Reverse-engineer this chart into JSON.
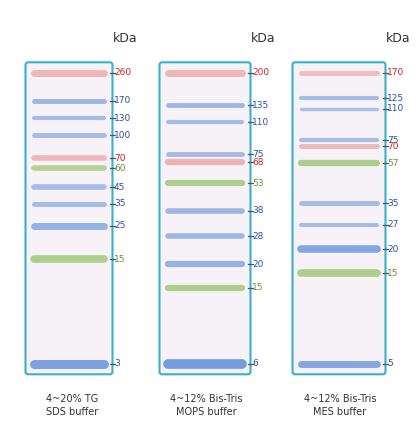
{
  "lanes": [
    {
      "title": "4~20% TG\nSDS buffer",
      "kda_max": 260,
      "kda_min": 3,
      "bands": [
        {
          "kda": 260,
          "color": "#e88888",
          "lw": 5.0,
          "alpha": 0.55
        },
        {
          "kda": 170,
          "color": "#6090d8",
          "lw": 3.5,
          "alpha": 0.6
        },
        {
          "kda": 130,
          "color": "#6090d8",
          "lw": 3.0,
          "alpha": 0.55
        },
        {
          "kda": 100,
          "color": "#6090d8",
          "lw": 3.5,
          "alpha": 0.55
        },
        {
          "kda": 70,
          "color": "#e88888",
          "lw": 4.0,
          "alpha": 0.55
        },
        {
          "kda": 60,
          "color": "#88bb55",
          "lw": 4.0,
          "alpha": 0.6
        },
        {
          "kda": 45,
          "color": "#6090d8",
          "lw": 4.0,
          "alpha": 0.55
        },
        {
          "kda": 35,
          "color": "#6090d8",
          "lw": 3.5,
          "alpha": 0.55
        },
        {
          "kda": 25,
          "color": "#6090d8",
          "lw": 5.0,
          "alpha": 0.65
        },
        {
          "kda": 15,
          "color": "#88bb55",
          "lw": 5.5,
          "alpha": 0.65
        },
        {
          "kda": 3,
          "color": "#5588d8",
          "lw": 6.5,
          "alpha": 0.75
        }
      ],
      "labels": [
        {
          "kda": 260,
          "text": "260",
          "color": "#cc2222"
        },
        {
          "kda": 170,
          "text": "170",
          "color": "#2255aa"
        },
        {
          "kda": 130,
          "text": "130",
          "color": "#2255aa"
        },
        {
          "kda": 100,
          "text": "100",
          "color": "#2255aa"
        },
        {
          "kda": 70,
          "text": "70",
          "color": "#cc2222"
        },
        {
          "kda": 60,
          "text": "60",
          "color": "#5a9a2a"
        },
        {
          "kda": 45,
          "text": "45",
          "color": "#2255aa"
        },
        {
          "kda": 35,
          "text": "35",
          "color": "#2255aa"
        },
        {
          "kda": 25,
          "text": "25",
          "color": "#2255aa"
        },
        {
          "kda": 15,
          "text": "15",
          "color": "#5a9a2a"
        },
        {
          "kda": 3,
          "text": "3",
          "color": "#2255aa"
        }
      ]
    },
    {
      "title": "4~12% Bis-Tris\nMOPS buffer",
      "kda_max": 200,
      "kda_min": 6,
      "bands": [
        {
          "kda": 200,
          "color": "#e88888",
          "lw": 5.0,
          "alpha": 0.55
        },
        {
          "kda": 135,
          "color": "#6090d8",
          "lw": 3.5,
          "alpha": 0.6
        },
        {
          "kda": 110,
          "color": "#6090d8",
          "lw": 3.0,
          "alpha": 0.55
        },
        {
          "kda": 75,
          "color": "#6090d8",
          "lw": 3.5,
          "alpha": 0.55
        },
        {
          "kda": 68,
          "color": "#e88888",
          "lw": 4.5,
          "alpha": 0.6
        },
        {
          "kda": 53,
          "color": "#88bb55",
          "lw": 4.5,
          "alpha": 0.65
        },
        {
          "kda": 38,
          "color": "#6090d8",
          "lw": 4.0,
          "alpha": 0.6
        },
        {
          "kda": 28,
          "color": "#6090d8",
          "lw": 4.0,
          "alpha": 0.6
        },
        {
          "kda": 20,
          "color": "#6090d8",
          "lw": 4.5,
          "alpha": 0.65
        },
        {
          "kda": 15,
          "color": "#88bb55",
          "lw": 4.5,
          "alpha": 0.65
        },
        {
          "kda": 6,
          "color": "#5588d8",
          "lw": 7.0,
          "alpha": 0.8
        }
      ],
      "labels": [
        {
          "kda": 200,
          "text": "200",
          "color": "#cc2222"
        },
        {
          "kda": 135,
          "text": "135",
          "color": "#2255aa"
        },
        {
          "kda": 110,
          "text": "110",
          "color": "#2255aa"
        },
        {
          "kda": 75,
          "text": "75",
          "color": "#2255aa"
        },
        {
          "kda": 68,
          "text": "68",
          "color": "#cc2222"
        },
        {
          "kda": 53,
          "text": "53",
          "color": "#5a9a2a"
        },
        {
          "kda": 38,
          "text": "38",
          "color": "#2255aa"
        },
        {
          "kda": 28,
          "text": "28",
          "color": "#2255aa"
        },
        {
          "kda": 20,
          "text": "20",
          "color": "#2255aa"
        },
        {
          "kda": 15,
          "text": "15",
          "color": "#5a9a2a"
        },
        {
          "kda": 6,
          "text": "6",
          "color": "#2255aa"
        }
      ]
    },
    {
      "title": "4~12% Bis-Tris\nMES buffer",
      "kda_max": 170,
      "kda_min": 5,
      "bands": [
        {
          "kda": 170,
          "color": "#e88888",
          "lw": 3.5,
          "alpha": 0.5
        },
        {
          "kda": 125,
          "color": "#6090d8",
          "lw": 3.0,
          "alpha": 0.55
        },
        {
          "kda": 110,
          "color": "#6090d8",
          "lw": 2.5,
          "alpha": 0.5
        },
        {
          "kda": 75,
          "color": "#6090d8",
          "lw": 3.0,
          "alpha": 0.55
        },
        {
          "kda": 70,
          "color": "#e88888",
          "lw": 3.5,
          "alpha": 0.55
        },
        {
          "kda": 57,
          "color": "#88bb55",
          "lw": 4.5,
          "alpha": 0.65
        },
        {
          "kda": 35,
          "color": "#6090d8",
          "lw": 3.5,
          "alpha": 0.55
        },
        {
          "kda": 27,
          "color": "#6090d8",
          "lw": 3.0,
          "alpha": 0.55
        },
        {
          "kda": 20,
          "color": "#5588d8",
          "lw": 5.5,
          "alpha": 0.7
        },
        {
          "kda": 15,
          "color": "#88bb55",
          "lw": 5.5,
          "alpha": 0.65
        },
        {
          "kda": 5,
          "color": "#5588d8",
          "lw": 5.0,
          "alpha": 0.7
        }
      ],
      "labels": [
        {
          "kda": 170,
          "text": "170",
          "color": "#cc2222"
        },
        {
          "kda": 125,
          "text": "125",
          "color": "#2255aa"
        },
        {
          "kda": 110,
          "text": "110",
          "color": "#2255aa"
        },
        {
          "kda": 75,
          "text": "75",
          "color": "#2255aa"
        },
        {
          "kda": 70,
          "text": "70",
          "color": "#cc2222"
        },
        {
          "kda": 57,
          "text": "57",
          "color": "#5a9a2a"
        },
        {
          "kda": 35,
          "text": "35",
          "color": "#2255aa"
        },
        {
          "kda": 27,
          "text": "27",
          "color": "#2255aa"
        },
        {
          "kda": 20,
          "text": "20",
          "color": "#2255aa"
        },
        {
          "kda": 15,
          "text": "15",
          "color": "#5a9a2a"
        },
        {
          "kda": 5,
          "text": "5",
          "color": "#2255aa"
        }
      ]
    }
  ],
  "bg_color": "#ffffff",
  "gel_bg": "#f7f2f7",
  "gel_border_color": "#3ab0cc",
  "gel_border_lw": 1.5,
  "kda_label_fontsize": 6.5,
  "title_fontsize": 7.0,
  "header_fontsize": 9.0
}
